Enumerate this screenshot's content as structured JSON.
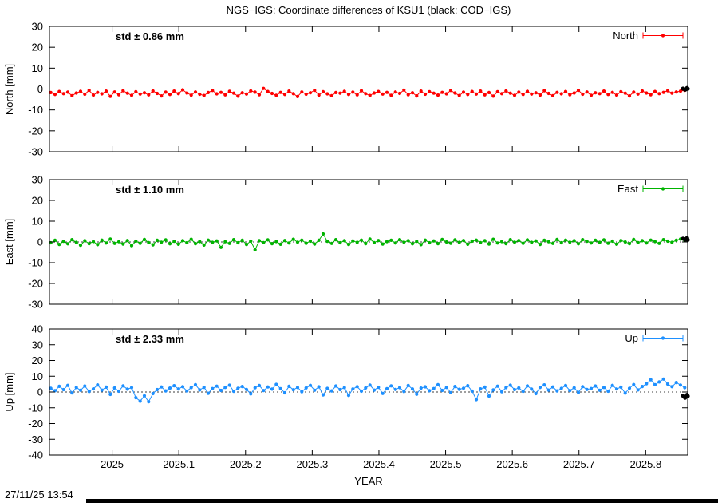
{
  "title": "NGS−IGS: Coordinate differences of KSU1 (black: COD−IGS)",
  "xlabel": "YEAR",
  "footer_timestamp": "27/11/25 13:54",
  "xlim": [
    2024.906,
    2025.863
  ],
  "xticks": {
    "values": [
      2025.0,
      2025.1,
      2025.2,
      2025.3,
      2025.4,
      2025.5,
      2025.6,
      2025.7,
      2025.8
    ],
    "labels": [
      "2025",
      "2025.1",
      "2025.2",
      "2025.3",
      "2025.4",
      "2025.5",
      "2025.6",
      "2025.7",
      "2025.8"
    ]
  },
  "chart_data": [
    {
      "type": "scatter",
      "name": "North",
      "ylabel": "North [mm]",
      "ylim": [
        -30,
        30
      ],
      "ytick_step": 10,
      "color": "#ff0000",
      "cod_color": "#000000",
      "std_label": "std ± 0.86 mm",
      "legend_label": "North",
      "x_start": 2024.908,
      "x_step": 0.00638,
      "y": [
        -1.7,
        -2.6,
        -1.2,
        -2.2,
        -1.5,
        -3.2,
        -1.9,
        -1.1,
        -2.5,
        -0.6,
        -2.9,
        -1.6,
        -2.3,
        -1.0,
        -3.5,
        -1.4,
        -2.7,
        -0.8,
        -2.0,
        -3.0,
        -1.3,
        -2.4,
        -1.8,
        -2.8,
        -0.9,
        -2.1,
        -3.3,
        -1.5,
        -2.6,
        -1.0,
        -2.2,
        -0.4,
        -1.9,
        -2.9,
        -1.4,
        -2.5,
        -3.1,
        -1.7,
        -0.7,
        -2.3,
        -1.6,
        -2.8,
        -1.1,
        -2.0,
        -3.4,
        -1.8,
        -2.4,
        -0.9,
        -1.5,
        -2.7,
        0.3,
        -1.2,
        -2.1,
        -3.0,
        -1.6,
        -2.6,
        -1.0,
        -2.2,
        -3.6,
        -1.4,
        -2.5,
        -1.8,
        -0.6,
        -2.9,
        -1.3,
        -2.3,
        -3.2,
        -1.7,
        -2.0,
        -1.1,
        -2.6,
        -1.5,
        -2.8,
        -0.8,
        -2.2,
        -3.1,
        -1.9,
        -1.2,
        -2.4,
        -1.6,
        -3.0,
        -1.4,
        -2.1,
        -0.5,
        -2.7,
        -1.8,
        -3.3,
        -1.0,
        -2.5,
        -1.3,
        -2.0,
        -2.9,
        -1.6,
        -2.3,
        -0.7,
        -1.9,
        -3.1,
        -1.5,
        -2.6,
        -1.2,
        -2.4,
        -1.0,
        -2.8,
        -1.7,
        -3.4,
        -1.3,
        -2.2,
        -0.9,
        -2.0,
        -3.0,
        -1.5,
        -2.6,
        -1.1,
        -2.4,
        -1.8,
        -2.9,
        -0.8,
        -2.1,
        -3.2,
        -1.6,
        -2.3,
        -1.2,
        -2.7,
        -1.9,
        -0.6,
        -2.5,
        -1.4,
        -3.0,
        -1.8,
        -2.2,
        -1.0,
        -2.6,
        -1.6,
        -2.9,
        -1.3,
        -2.0,
        -3.3,
        -1.5,
        -2.4,
        -0.9,
        -1.9,
        -2.7,
        -1.2,
        -2.2,
        -1.6,
        -0.8,
        -2.0,
        -1.4,
        -1.0,
        -0.6
      ],
      "cod": {
        "x": [
          2025.856,
          2025.859,
          2025.862,
          2025.86,
          2025.863
        ],
        "y": [
          0.2,
          -0.3,
          0.5,
          -0.1,
          0.1
        ]
      }
    },
    {
      "type": "scatter",
      "name": "East",
      "ylabel": "East [mm]",
      "ylim": [
        -30,
        30
      ],
      "ytick_step": 10,
      "color": "#00b400",
      "cod_color": "#000000",
      "std_label": "std ± 1.10 mm",
      "legend_label": "East",
      "x_start": 2024.908,
      "x_step": 0.00638,
      "y": [
        -0.4,
        0.8,
        -1.2,
        0.3,
        -0.9,
        1.1,
        -0.2,
        -1.6,
        0.6,
        -0.8,
        0.2,
        -1.3,
        0.9,
        -0.5,
        1.4,
        -0.7,
        0.1,
        -1.0,
        0.7,
        -1.8,
        0.4,
        -0.6,
        1.2,
        -0.3,
        -1.4,
        0.8,
        -0.1,
        1.0,
        -0.9,
        0.3,
        -1.1,
        0.6,
        -0.4,
        1.3,
        -0.8,
        0.2,
        -1.5,
        0.9,
        -0.2,
        0.5,
        -2.6,
        0.1,
        -0.7,
        1.1,
        -0.4,
        0.8,
        -1.2,
        0.4,
        -3.8,
        0.6,
        -0.3,
        1.0,
        -0.8,
        0.2,
        -1.1,
        0.7,
        -0.5,
        1.3,
        -0.1,
        0.9,
        -0.6,
        0.4,
        -1.0,
        0.8,
        3.9,
        0.3,
        -0.7,
        1.1,
        -0.4,
        0.6,
        -1.2,
        0.5,
        -0.2,
        0.9,
        -0.8,
        1.4,
        -0.3,
        0.7,
        -1.0,
        0.2,
        0.8,
        -0.5,
        1.1,
        -0.1,
        0.6,
        -0.9,
        0.3,
        -1.3,
        0.9,
        -0.4,
        0.5,
        -0.8,
        1.2,
        0.0,
        -0.6,
        1.0,
        -0.2,
        0.7,
        -1.1,
        0.4,
        0.9,
        -0.3,
        0.6,
        -1.0,
        1.3,
        -0.5,
        0.2,
        -0.8,
        1.1,
        -0.1,
        0.7,
        -0.6,
        1.0,
        -0.2,
        0.5,
        -1.2,
        0.8,
        0.1,
        -0.7,
        1.2,
        -0.4,
        0.9,
        -0.1,
        0.6,
        -0.9,
        1.1,
        0.3,
        -0.5,
        0.8,
        -0.2,
        1.0,
        -0.6,
        0.4,
        -1.1,
        0.7,
        0.0,
        -0.8,
        1.2,
        -0.3,
        0.6,
        -0.5,
        0.9,
        0.2,
        -0.7,
        1.1,
        0.4,
        -0.2,
        0.8,
        1.4,
        0.7
      ],
      "cod": {
        "x": [
          2025.856,
          2025.859,
          2025.862,
          2025.86,
          2025.863
        ],
        "y": [
          1.6,
          1.2,
          1.9,
          1.4,
          1.0
        ]
      }
    },
    {
      "type": "scatter",
      "name": "Up",
      "ylabel": "Up [mm]",
      "ylim": [
        -40,
        40
      ],
      "ytick_step": 10,
      "color": "#1e90ff",
      "cod_color": "#000000",
      "std_label": "std ± 2.33 mm",
      "legend_label": "Up",
      "x_start": 2024.908,
      "x_step": 0.00638,
      "y": [
        2.4,
        0.8,
        3.6,
        1.5,
        4.2,
        -0.6,
        2.9,
        1.1,
        3.8,
        0.3,
        2.0,
        4.5,
        1.2,
        3.1,
        -1.5,
        2.6,
        0.5,
        3.9,
        1.8,
        2.8,
        -3.6,
        -5.8,
        -2.4,
        -6.2,
        -1.0,
        1.5,
        3.2,
        0.7,
        2.5,
        4.0,
        1.9,
        3.4,
        0.6,
        2.8,
        4.6,
        1.3,
        3.0,
        -0.8,
        2.2,
        3.7,
        1.0,
        2.9,
        4.3,
        0.4,
        2.4,
        3.5,
        1.6,
        -1.2,
        2.7,
        4.1,
        0.9,
        3.2,
        1.8,
        4.8,
        2.1,
        -0.5,
        3.6,
        1.4,
        2.9,
        0.2,
        2.6,
        4.2,
        1.1,
        3.3,
        -1.8,
        2.3,
        0.7,
        3.8,
        1.5,
        2.8,
        -2.2,
        1.9,
        3.4,
        0.5,
        2.6,
        4.4,
        1.2,
        3.0,
        -0.9,
        2.1,
        3.9,
        1.6,
        2.8,
        0.3,
        4.1,
        1.9,
        -1.4,
        2.5,
        3.3,
        0.8,
        2.2,
        4.6,
        1.0,
        2.9,
        -0.4,
        3.5,
        1.7,
        2.4,
        4.0,
        0.6,
        -4.8,
        2.0,
        3.1,
        -2.6,
        1.3,
        3.7,
        0.2,
        2.8,
        4.3,
        1.5,
        2.6,
        0.4,
        3.9,
        1.8,
        -1.0,
        2.9,
        4.5,
        1.2,
        3.2,
        0.7,
        2.3,
        4.1,
        0.9,
        2.7,
        -0.3,
        3.4,
        1.6,
        2.2,
        3.8,
        1.1,
        2.9,
        0.5,
        4.2,
        1.9,
        3.1,
        -0.7,
        2.4,
        4.7,
        1.3,
        3.5,
        5.2,
        7.8,
        4.6,
        6.4,
        8.2,
        5.0,
        3.4,
        6.0,
        4.4,
        2.8
      ],
      "cod": {
        "x": [
          2025.856,
          2025.859,
          2025.862,
          2025.86,
          2025.863
        ],
        "y": [
          -2.4,
          -3.6,
          -1.8,
          -3.0,
          -2.6
        ]
      }
    }
  ]
}
